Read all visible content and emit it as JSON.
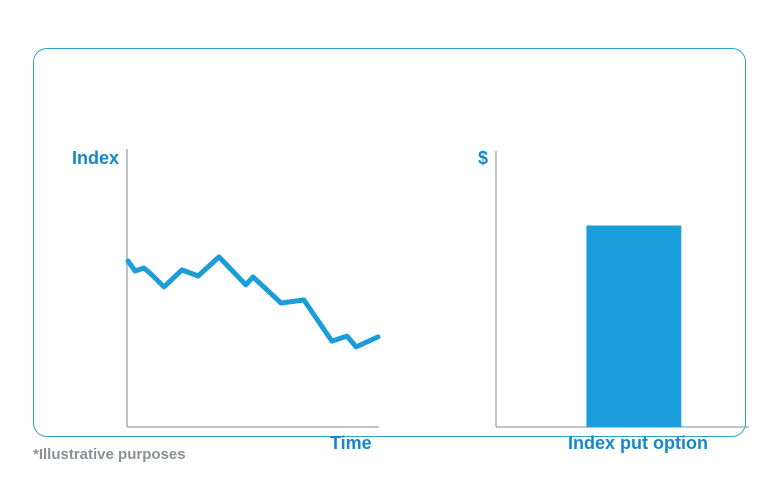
{
  "figure": {
    "footnote": "*Illustrative purposes"
  },
  "colors": {
    "series_blue": "#1b9dda",
    "label_blue": "#1588cc",
    "axis_gray": "#97a1a7",
    "frame_border_blue": "#2da2cc",
    "footnote_gray": "#8b9196",
    "background": "#ffffff"
  },
  "chart_data": [
    {
      "type": "line",
      "ylabel": "Index",
      "xlabel": "Time",
      "x": [
        0.004,
        0.032,
        0.067,
        0.091,
        0.147,
        0.218,
        0.282,
        0.365,
        0.472,
        0.5,
        0.611,
        0.702,
        0.813,
        0.873,
        0.909,
        0.996
      ],
      "values": [
        59.7,
        56.1,
        57.2,
        55.4,
        50.4,
        56.5,
        54.3,
        61.2,
        51.1,
        54.0,
        44.6,
        45.7,
        30.9,
        32.7,
        28.8,
        32.4
      ],
      "xlim": [
        0,
        1
      ],
      "ylim": [
        0,
        100
      ],
      "grid": false,
      "tick_labels": "none",
      "legend": "none"
    },
    {
      "type": "bar",
      "ylabel": "$",
      "categories": [
        "Index put option"
      ],
      "values": [
        73
      ],
      "ylim": [
        0,
        100
      ],
      "bar_center_frac": 0.545,
      "bar_width_frac": 0.375,
      "grid": false,
      "tick_labels": "none",
      "legend": "none"
    }
  ]
}
